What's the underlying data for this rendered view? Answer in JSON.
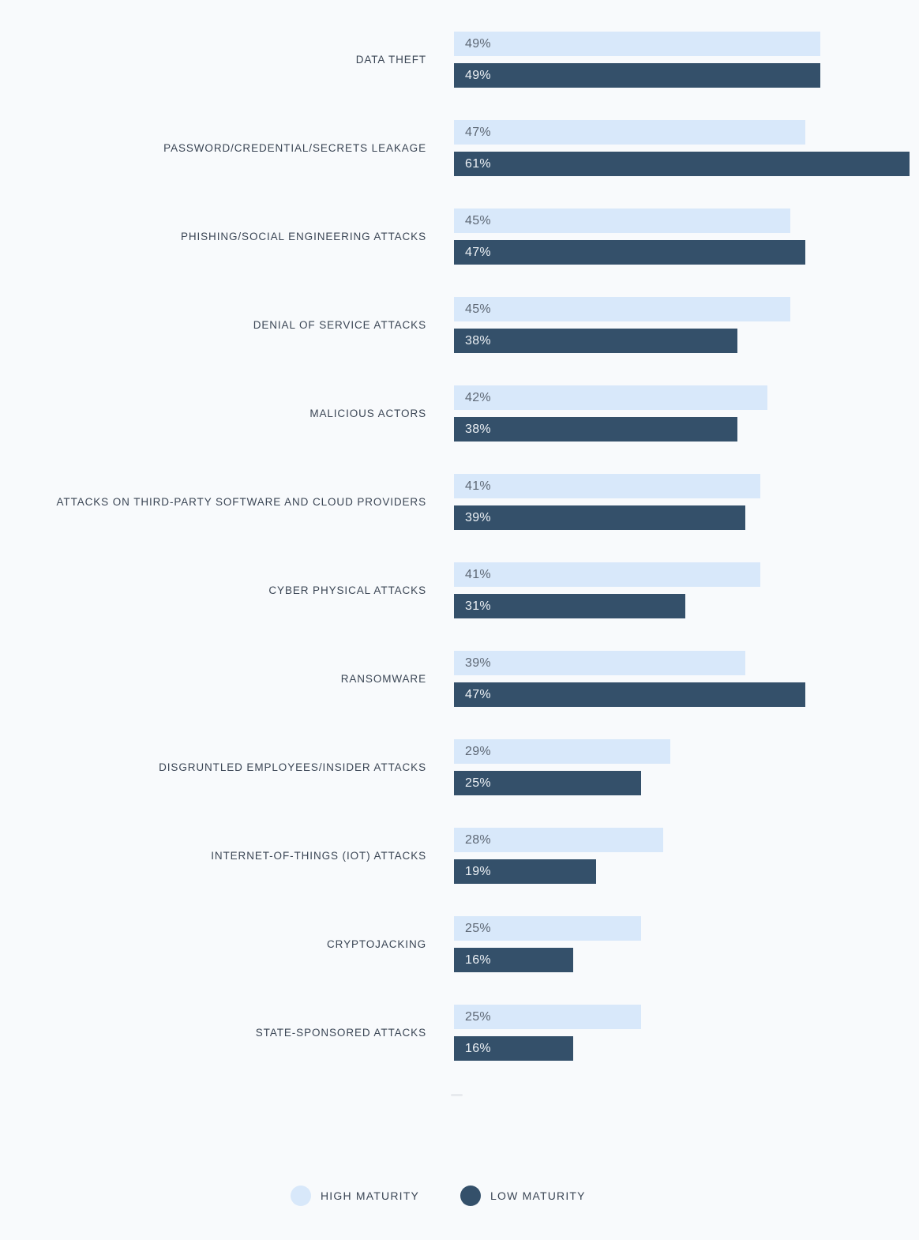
{
  "page": {
    "background": "#f8fafc"
  },
  "chart_data": {
    "type": "bar",
    "orientation": "horizontal",
    "title": "",
    "xlabel": "",
    "ylabel": "",
    "xlim": [
      0,
      61
    ],
    "grid": false,
    "data_labels": true,
    "value_suffix": "%",
    "legend_position": "bottom",
    "categories": [
      "DATA THEFT",
      "PASSWORD/CREDENTIAL/SECRETS LEAKAGE",
      "PHISHING/SOCIAL ENGINEERING ATTACKS",
      "DENIAL OF SERVICE ATTACKS",
      "MALICIOUS ACTORS",
      "ATTACKS ON THIRD-PARTY SOFTWARE AND CLOUD PROVIDERS",
      "CYBER PHYSICAL ATTACKS",
      "RANSOMWARE",
      "DISGRUNTLED EMPLOYEES/INSIDER ATTACKS",
      "INTERNET-OF-THINGS (IOT) ATTACKS",
      "CRYPTOJACKING",
      "STATE-SPONSORED ATTACKS"
    ],
    "series": [
      {
        "name": "HIGH MATURITY",
        "color": "#d8e8fa",
        "label_text_color": "#5d6774",
        "values": [
          49,
          47,
          45,
          45,
          42,
          41,
          41,
          39,
          29,
          28,
          25,
          25
        ]
      },
      {
        "name": "LOW MATURITY",
        "color": "#34506a",
        "label_text_color": "#eef2f6",
        "values": [
          49,
          61,
          47,
          38,
          38,
          39,
          31,
          47,
          25,
          19,
          16,
          16
        ]
      }
    ]
  }
}
